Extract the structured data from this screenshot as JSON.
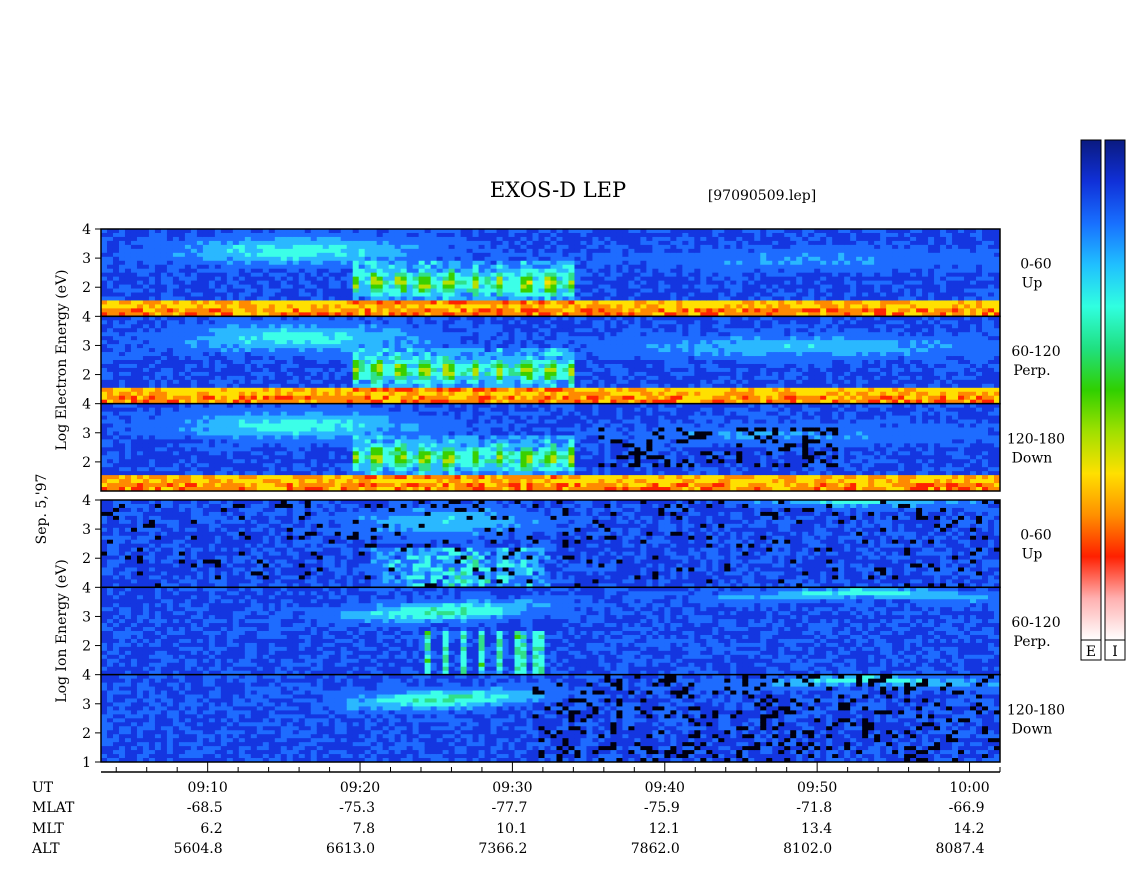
{
  "header": {
    "title": "EXOS-D LEP",
    "file_label": "[97090509.lep]",
    "date_label": "Sep. 5,'97"
  },
  "chart_data": [
    {
      "type": "heatmap",
      "group": "electron",
      "ylabel": "Log Electron Energy (eV)",
      "ylabel_lines": [
        "Log",
        "Electron",
        "Energy",
        "(eV)"
      ],
      "x_range": [
        "09:03",
        "10:02"
      ],
      "panels": [
        {
          "angle": "0-60",
          "direction": "Up",
          "ylim": [
            1,
            4
          ],
          "yticks": [
            "4",
            "3",
            "2"
          ]
        },
        {
          "angle": "60-120",
          "direction": "Perp.",
          "ylim": [
            1,
            4
          ],
          "yticks": [
            "4",
            "3",
            "2"
          ]
        },
        {
          "angle": "120-180",
          "direction": "Down",
          "ylim": [
            1,
            4
          ],
          "yticks": [
            "4",
            "3",
            "2"
          ]
        }
      ]
    },
    {
      "type": "heatmap",
      "group": "ion",
      "ylabel": "Log Ion Energy (eV)",
      "ylabel_lines": [
        "Log",
        "Ion",
        "Energy",
        "(eV)"
      ],
      "x_range": [
        "09:03",
        "10:02"
      ],
      "panels": [
        {
          "angle": "0-60",
          "direction": "Up",
          "ylim": [
            1,
            4
          ],
          "yticks": [
            "4",
            "3",
            "2"
          ]
        },
        {
          "angle": "60-120",
          "direction": "Perp.",
          "ylim": [
            1,
            4
          ],
          "yticks": [
            "4",
            "3",
            "2"
          ]
        },
        {
          "angle": "120-180",
          "direction": "Down",
          "ylim": [
            1,
            4
          ],
          "yticks": [
            "4",
            "3",
            "2",
            "1"
          ]
        }
      ]
    }
  ],
  "orbit_table": {
    "row_labels": [
      "UT",
      "MLAT",
      "MLT",
      "ALT"
    ],
    "columns": [
      {
        "UT": "09:10",
        "MLAT": "-68.5",
        "MLT": "6.2",
        "ALT": "5604.8"
      },
      {
        "UT": "09:20",
        "MLAT": "-75.3",
        "MLT": "7.8",
        "ALT": "6613.0"
      },
      {
        "UT": "09:30",
        "MLAT": "-77.7",
        "MLT": "10.1",
        "ALT": "7366.2"
      },
      {
        "UT": "09:40",
        "MLAT": "-75.9",
        "MLT": "12.1",
        "ALT": "7862.0"
      },
      {
        "UT": "09:50",
        "MLAT": "-71.8",
        "MLT": "13.4",
        "ALT": "8102.0"
      },
      {
        "UT": "10:00",
        "MLAT": "-66.9",
        "MLT": "14.2",
        "ALT": "8087.4"
      }
    ]
  },
  "colorbars": {
    "labels": [
      "E",
      "I"
    ],
    "stops": [
      "#0a1a80",
      "#1030d8",
      "#1870ff",
      "#20c0ff",
      "#30ffe0",
      "#20e080",
      "#30d000",
      "#a0e000",
      "#ffe000",
      "#ff9000",
      "#ff2000",
      "#ffb0b0",
      "#ffffff"
    ]
  }
}
